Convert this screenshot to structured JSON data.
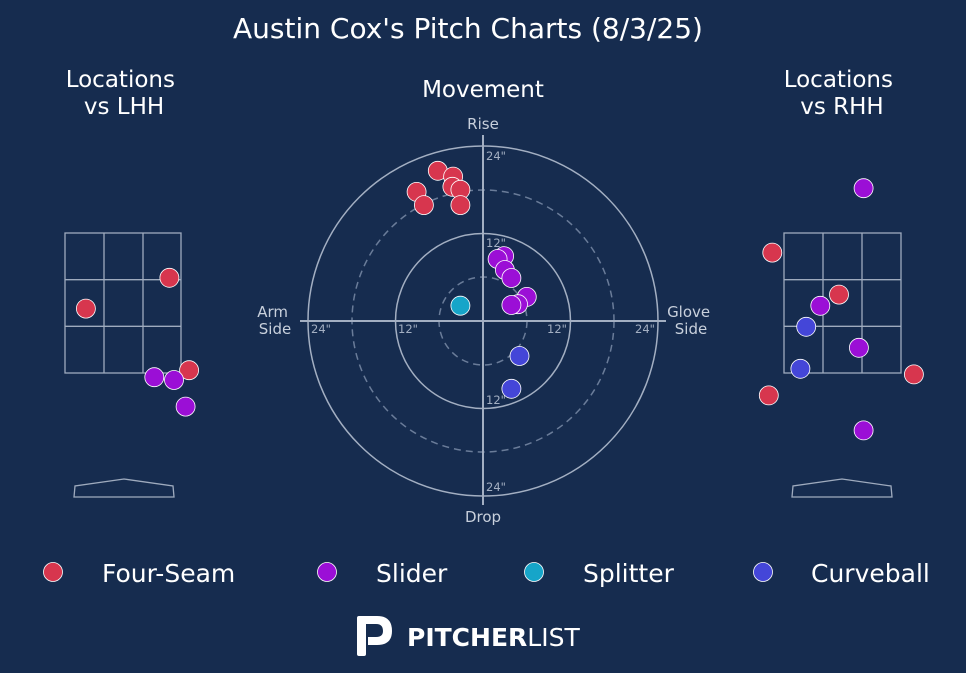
{
  "title": "Austin Cox's Pitch Charts (8/3/25)",
  "panels": {
    "lhh_title": [
      "Locations",
      "vs LHH"
    ],
    "movement_title": "Movement",
    "rhh_title": [
      "Locations",
      "vs RHH"
    ]
  },
  "movement_labels": {
    "top": "Rise",
    "bottom": "Drop",
    "left": [
      "Arm",
      "Side"
    ],
    "right": [
      "Glove",
      "Side"
    ],
    "ring_labels": [
      "24\"",
      "12\"",
      "12\"",
      "24\""
    ]
  },
  "legend": [
    {
      "name": "Four-Seam",
      "color": "#d7364e"
    },
    {
      "name": "Slider",
      "color": "#9b0fd6"
    },
    {
      "name": "Splitter",
      "color": "#16a5c9"
    },
    {
      "name": "Curveball",
      "color": "#4446d8"
    }
  ],
  "brand": {
    "bold": "PITCHER",
    "light": "LIST",
    "icon": "pitcherlist-p-logo-icon"
  },
  "chart_data": [
    {
      "type": "scatter",
      "name": "Locations vs LHH",
      "xlabel": "",
      "ylabel": "",
      "x_unit": "zone widths from center",
      "y_unit": "zone heights from center",
      "points": [
        {
          "pitch": "Four-Seam",
          "x": 0.4,
          "y": 0.18
        },
        {
          "pitch": "Four-Seam",
          "x": -0.32,
          "y": -0.04
        },
        {
          "pitch": "Four-Seam",
          "x": 0.57,
          "y": -0.48
        },
        {
          "pitch": "Slider",
          "x": 0.27,
          "y": -0.53
        },
        {
          "pitch": "Slider",
          "x": 0.44,
          "y": -0.55
        },
        {
          "pitch": "Slider",
          "x": 0.54,
          "y": -0.74
        }
      ]
    },
    {
      "type": "scatter",
      "name": "Movement",
      "polar": true,
      "unit": "inches",
      "rings": [
        6,
        12,
        18,
        24
      ],
      "xlim": [
        -24,
        24
      ],
      "ylim": [
        -24,
        24
      ],
      "points": [
        {
          "pitch": "Four-Seam",
          "x": -6.2,
          "y": 20.6
        },
        {
          "pitch": "Four-Seam",
          "x": -4.1,
          "y": 19.8
        },
        {
          "pitch": "Four-Seam",
          "x": -4.2,
          "y": 18.4
        },
        {
          "pitch": "Four-Seam",
          "x": -3.1,
          "y": 18.0
        },
        {
          "pitch": "Four-Seam",
          "x": -9.1,
          "y": 17.7
        },
        {
          "pitch": "Four-Seam",
          "x": -8.1,
          "y": 15.9
        },
        {
          "pitch": "Four-Seam",
          "x": -3.1,
          "y": 15.9
        },
        {
          "pitch": "Slider",
          "x": 2.9,
          "y": 8.9
        },
        {
          "pitch": "Slider",
          "x": 2.0,
          "y": 8.5
        },
        {
          "pitch": "Slider",
          "x": 3.0,
          "y": 7.0
        },
        {
          "pitch": "Slider",
          "x": 3.9,
          "y": 5.9
        },
        {
          "pitch": "Slider",
          "x": 6.0,
          "y": 3.3
        },
        {
          "pitch": "Slider",
          "x": 4.8,
          "y": 2.3
        },
        {
          "pitch": "Slider",
          "x": 3.9,
          "y": 2.2
        },
        {
          "pitch": "Splitter",
          "x": -3.1,
          "y": 2.1
        },
        {
          "pitch": "Curveball",
          "x": 5.0,
          "y": -4.8
        },
        {
          "pitch": "Curveball",
          "x": 3.9,
          "y": -9.3
        }
      ]
    },
    {
      "type": "scatter",
      "name": "Locations vs RHH",
      "xlabel": "",
      "ylabel": "",
      "x_unit": "zone widths from center",
      "y_unit": "zone heights from center",
      "points": [
        {
          "pitch": "Four-Seam",
          "x": -0.6,
          "y": 0.36
        },
        {
          "pitch": "Four-Seam",
          "x": -0.03,
          "y": 0.06
        },
        {
          "pitch": "Four-Seam",
          "x": -0.63,
          "y": -0.66
        },
        {
          "pitch": "Four-Seam",
          "x": 0.61,
          "y": -0.51
        },
        {
          "pitch": "Slider",
          "x": 0.18,
          "y": 0.82
        },
        {
          "pitch": "Slider",
          "x": -0.19,
          "y": -0.02
        },
        {
          "pitch": "Slider",
          "x": 0.14,
          "y": -0.32
        },
        {
          "pitch": "Slider",
          "x": 0.18,
          "y": -0.91
        },
        {
          "pitch": "Curveball",
          "x": -0.31,
          "y": -0.17
        },
        {
          "pitch": "Curveball",
          "x": -0.36,
          "y": -0.47
        }
      ]
    }
  ]
}
